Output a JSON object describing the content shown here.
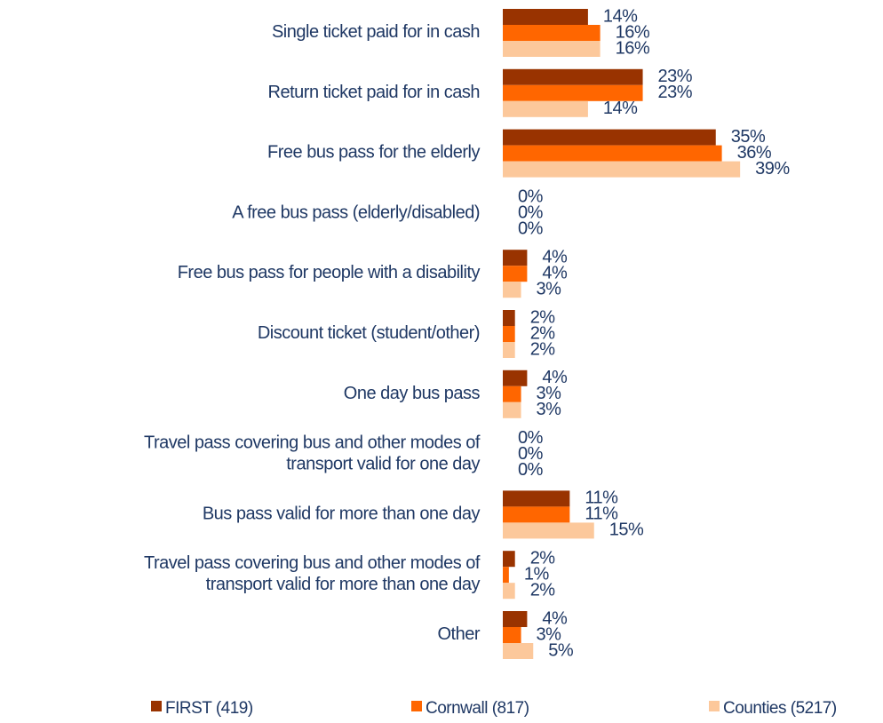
{
  "chart_data": {
    "type": "hbar",
    "categories": [
      "Single ticket paid for in cash",
      "Return ticket paid for in cash",
      "Free bus pass for the elderly",
      "A free bus pass (elderly/disabled)",
      "Free bus pass for people with a disability",
      "Discount ticket (student/other)",
      "One day bus pass",
      "Travel pass covering bus and other modes of\ntransport valid for one day",
      "Bus pass valid for more than one day",
      "Travel pass covering bus and other modes of\ntransport valid for more than one day",
      "Other"
    ],
    "series": [
      {
        "name": "FIRST (419)",
        "color": "#993300",
        "values": [
          14,
          23,
          35,
          0,
          4,
          2,
          4,
          0,
          11,
          2,
          4
        ],
        "value_labels": [
          "14%",
          "23%",
          "35%",
          "0%",
          "4%",
          "2%",
          "4%",
          "0%",
          "11%",
          "2%",
          "4%"
        ]
      },
      {
        "name": "Cornwall (817)",
        "color": "#ff6600",
        "values": [
          16,
          23,
          36,
          0,
          4,
          2,
          3,
          0,
          11,
          1,
          3
        ],
        "value_labels": [
          "16%",
          "23%",
          "36%",
          "0%",
          "4%",
          "2%",
          "3%",
          "0%",
          "11%",
          "1%",
          "3%"
        ]
      },
      {
        "name": "Counties (5217)",
        "color": "#fcc89b",
        "values": [
          16,
          14,
          39,
          0,
          3,
          2,
          3,
          0,
          15,
          2,
          5
        ],
        "value_labels": [
          "16%",
          "14%",
          "39%",
          "0%",
          "3%",
          "2%",
          "3%",
          "0%",
          "15%",
          "2%",
          "5%"
        ]
      }
    ],
    "xlim": [
      0,
      60
    ]
  }
}
